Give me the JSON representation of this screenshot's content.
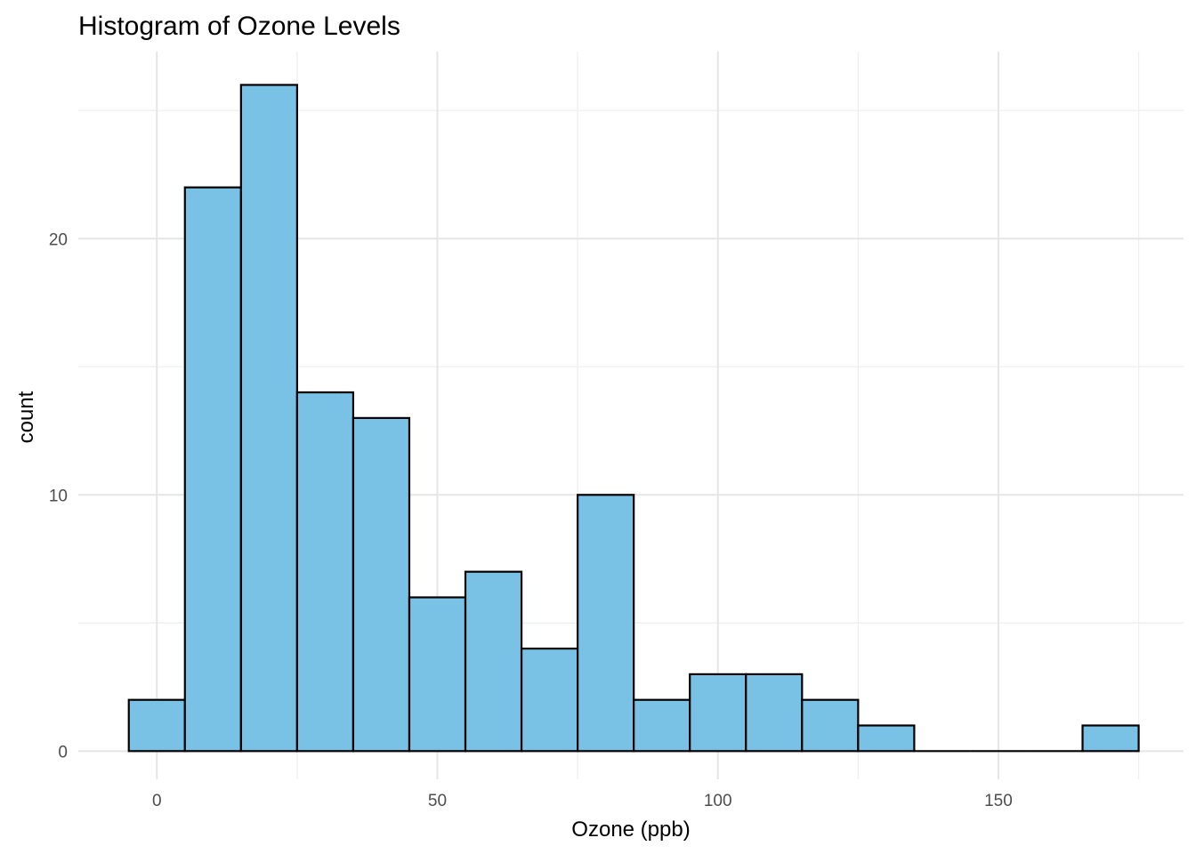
{
  "chart_data": {
    "type": "bar",
    "title": "Histogram of Ozone Levels",
    "xlabel": "Ozone (ppb)",
    "ylabel": "count",
    "bin_width": 10,
    "bins": [
      {
        "x0": -5,
        "x1": 5,
        "count": 2
      },
      {
        "x0": 5,
        "x1": 15,
        "count": 22
      },
      {
        "x0": 15,
        "x1": 25,
        "count": 26
      },
      {
        "x0": 25,
        "x1": 35,
        "count": 14
      },
      {
        "x0": 35,
        "x1": 45,
        "count": 13
      },
      {
        "x0": 45,
        "x1": 55,
        "count": 6
      },
      {
        "x0": 55,
        "x1": 65,
        "count": 7
      },
      {
        "x0": 65,
        "x1": 75,
        "count": 4
      },
      {
        "x0": 75,
        "x1": 85,
        "count": 10
      },
      {
        "x0": 85,
        "x1": 95,
        "count": 2
      },
      {
        "x0": 95,
        "x1": 105,
        "count": 3
      },
      {
        "x0": 105,
        "x1": 115,
        "count": 3
      },
      {
        "x0": 115,
        "x1": 125,
        "count": 2
      },
      {
        "x0": 125,
        "x1": 135,
        "count": 1
      },
      {
        "x0": 135,
        "x1": 145,
        "count": 0
      },
      {
        "x0": 145,
        "x1": 155,
        "count": 0
      },
      {
        "x0": 155,
        "x1": 165,
        "count": 0
      },
      {
        "x0": 165,
        "x1": 175,
        "count": 1
      }
    ],
    "x_ticks": [
      0,
      50,
      100,
      150
    ],
    "y_ticks": [
      0,
      10,
      20
    ],
    "xlim": [
      -14,
      183
    ],
    "ylim": [
      -1.1,
      27.3
    ],
    "grid": true,
    "bar_fill": "#79c2e6",
    "bar_stroke": "#000000"
  }
}
